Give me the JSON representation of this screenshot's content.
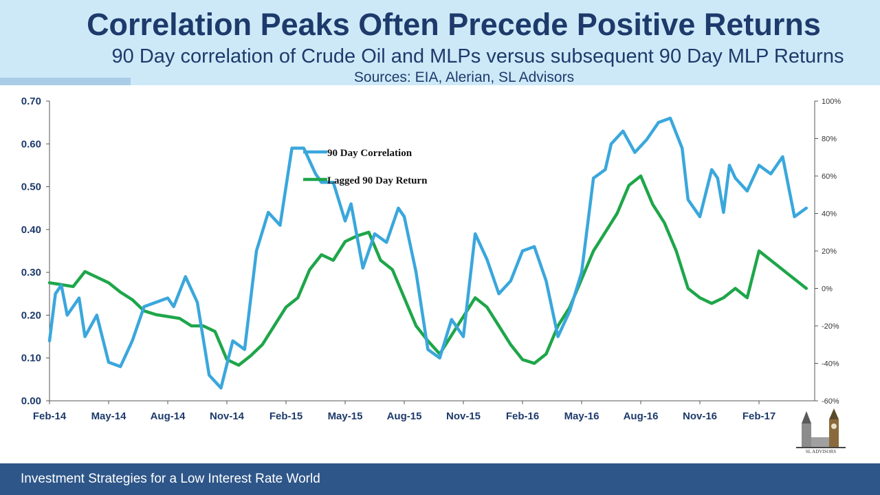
{
  "header": {
    "title": "Correlation Peaks Often Precede Positive Returns",
    "subtitle": "90 Day correlation of Crude Oil and MLPs versus subsequent 90 Day MLP Returns",
    "sources": "Sources: EIA, Alerian, SL Advisors"
  },
  "footer": {
    "text": "Investment Strategies for a Low Interest Rate World"
  },
  "logo": {
    "text": "SL ADVISORS"
  },
  "colors": {
    "header_bg": "#cde9f8",
    "title": "#1d3a6b",
    "footer_bg": "#2e5689",
    "correlation": "#3aa7dc",
    "return": "#1ea64a"
  },
  "chart_data": {
    "type": "line",
    "categories": [
      "Feb-14",
      "May-14",
      "Aug-14",
      "Nov-14",
      "Feb-15",
      "May-15",
      "Aug-15",
      "Nov-15",
      "Feb-16",
      "May-16",
      "Aug-16",
      "Nov-16",
      "Feb-17"
    ],
    "y_left": {
      "ticks": [
        "0.00",
        "0.10",
        "0.20",
        "0.30",
        "0.40",
        "0.50",
        "0.60",
        "0.70"
      ],
      "ylim": [
        0,
        0.7
      ]
    },
    "y_right": {
      "ticks": [
        "-60%",
        "-40%",
        "-20%",
        "0%",
        "20%",
        "40%",
        "60%",
        "80%",
        "100%"
      ],
      "ylim": [
        -60,
        100
      ]
    },
    "legend": {
      "placement": "top-center"
    },
    "series": [
      {
        "name": "90 Day Correlation",
        "axis": "left",
        "color": "#3aa7dc",
        "x": [
          0,
          0.1,
          0.2,
          0.3,
          0.5,
          0.6,
          0.8,
          1,
          1.2,
          1.4,
          1.6,
          1.8,
          2,
          2.1,
          2.3,
          2.5,
          2.7,
          2.9,
          3.1,
          3.3,
          3.5,
          3.7,
          3.9,
          4.1,
          4.3,
          4.5,
          4.6,
          4.8,
          5,
          5.1,
          5.3,
          5.5,
          5.7,
          5.9,
          6,
          6.2,
          6.4,
          6.6,
          6.8,
          7,
          7.2,
          7.4,
          7.6,
          7.8,
          8,
          8.2,
          8.4,
          8.6,
          8.8,
          9,
          9.2,
          9.4,
          9.5,
          9.7,
          9.9,
          10.1,
          10.3,
          10.5,
          10.7,
          10.8,
          11,
          11.2,
          11.3,
          11.4,
          11.5,
          11.6,
          11.8,
          12,
          12.2,
          12.4,
          12.6,
          12.8
        ],
        "values": [
          0.14,
          0.25,
          0.27,
          0.2,
          0.24,
          0.15,
          0.2,
          0.09,
          0.08,
          0.14,
          0.22,
          0.23,
          0.24,
          0.22,
          0.29,
          0.23,
          0.06,
          0.03,
          0.14,
          0.12,
          0.35,
          0.44,
          0.41,
          0.59,
          0.59,
          0.53,
          0.51,
          0.51,
          0.42,
          0.46,
          0.31,
          0.39,
          0.37,
          0.45,
          0.43,
          0.3,
          0.12,
          0.1,
          0.19,
          0.15,
          0.39,
          0.33,
          0.25,
          0.28,
          0.35,
          0.36,
          0.28,
          0.15,
          0.21,
          0.3,
          0.52,
          0.54,
          0.6,
          0.63,
          0.58,
          0.61,
          0.65,
          0.66,
          0.59,
          0.47,
          0.43,
          0.54,
          0.52,
          0.44,
          0.55,
          0.52,
          0.49,
          0.55,
          0.53,
          0.57,
          0.43,
          0.45
        ],
        "values_cont": null
      },
      {
        "name": "Lagged 90 Day Return",
        "axis": "right",
        "color": "#1ea64a",
        "x": [
          0,
          0.2,
          0.4,
          0.6,
          0.8,
          1,
          1.2,
          1.4,
          1.6,
          1.8,
          2,
          2.2,
          2.4,
          2.6,
          2.8,
          3,
          3.2,
          3.4,
          3.6,
          3.8,
          4,
          4.2,
          4.4,
          4.6,
          4.8,
          5,
          5.2,
          5.4,
          5.6,
          5.8,
          6,
          6.2,
          6.4,
          6.6,
          6.8,
          7,
          7.2,
          7.4,
          7.6,
          7.8,
          8,
          8.2,
          8.4,
          8.6,
          8.8,
          9,
          9.2,
          9.4,
          9.6,
          9.8,
          10,
          10.2,
          10.4,
          10.6,
          10.8,
          11,
          11.2,
          11.4,
          11.6,
          11.8,
          12,
          12.2,
          12.4,
          12.6,
          12.8
        ],
        "values": [
          3,
          2,
          1,
          9,
          6,
          3,
          -2,
          -6,
          -12,
          -14,
          -15,
          -16,
          -20,
          -20,
          -23,
          -38,
          -41,
          -36,
          -30,
          -20,
          -10,
          -5,
          10,
          18,
          15,
          25,
          28,
          30,
          15,
          10,
          -5,
          -20,
          -28,
          -35,
          -25,
          -15,
          -5,
          -10,
          -20,
          -30,
          -38,
          -40,
          -35,
          -20,
          -10,
          5,
          20,
          30,
          40,
          55,
          60,
          45,
          35,
          20,
          0,
          -5,
          -8,
          -5,
          0,
          -5,
          20,
          15,
          10,
          5,
          0
        ],
        "values_cont": null
      }
    ]
  }
}
